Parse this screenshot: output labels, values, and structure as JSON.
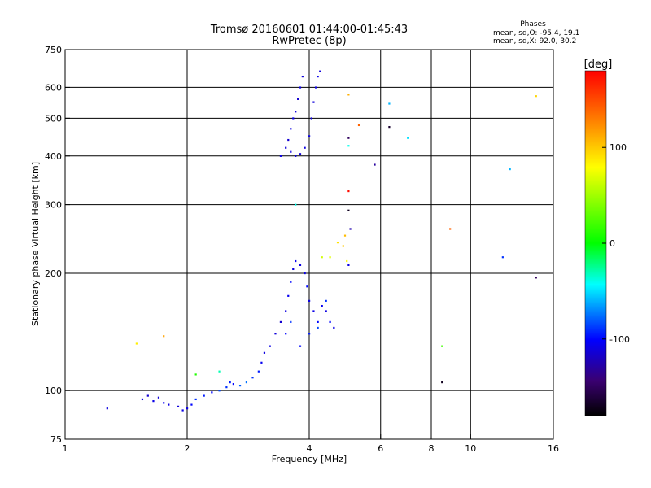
{
  "chart_data": {
    "type": "scatter",
    "title": "Tromsø 20160601 01:44:00-01:45:43",
    "subtitle": "RwPretec (8p)",
    "xlabel": "Frequency [MHz]",
    "ylabel": "Stationary phase Virtual Height [km]",
    "x_scale": "log2",
    "y_scale": "log",
    "xlim": [
      1,
      16
    ],
    "ylim": [
      75,
      750
    ],
    "x_ticks": [
      1,
      2,
      4,
      6,
      8,
      10,
      16
    ],
    "x_tick_labels": [
      "1",
      "2",
      "4",
      "6",
      "8",
      "10",
      "16"
    ],
    "x_grid": [
      2,
      4,
      6,
      8,
      10
    ],
    "y_ticks": [
      75,
      100,
      200,
      300,
      400,
      500,
      600,
      750
    ],
    "y_tick_labels": [
      "75",
      "100",
      "200",
      "300",
      "400",
      "500",
      "600",
      "750"
    ],
    "y_grid": [
      100,
      200,
      300,
      400,
      500,
      600
    ],
    "grid": true,
    "stats": {
      "header": "Phases",
      "line_o": "mean, sd,O: -95.4, 19.1",
      "line_x": "mean, sd,X:  92.0, 30.2"
    },
    "colorbar": {
      "label": "[deg]",
      "range": [
        -180,
        180
      ],
      "ticks": [
        100,
        0,
        -100
      ],
      "tick_labels": [
        "100",
        "0",
        "-100"
      ],
      "colormap": "rainbow (black-purple-blue-cyan-green-yellow-orange-red)"
    },
    "points": [
      [
        1.27,
        90,
        -110
      ],
      [
        1.55,
        95,
        -110
      ],
      [
        1.6,
        97,
        -115
      ],
      [
        1.65,
        94,
        -108
      ],
      [
        1.7,
        96,
        -112
      ],
      [
        1.75,
        93,
        -105
      ],
      [
        1.8,
        92,
        -110
      ],
      [
        1.9,
        91,
        -112
      ],
      [
        1.95,
        89,
        -108
      ],
      [
        2.0,
        90,
        -110
      ],
      [
        2.05,
        92,
        -100
      ],
      [
        2.1,
        95,
        -90
      ],
      [
        2.2,
        97,
        -95
      ],
      [
        2.3,
        99,
        -100
      ],
      [
        2.4,
        100,
        -85
      ],
      [
        2.5,
        102,
        -90
      ],
      [
        2.55,
        105,
        -95
      ],
      [
        2.6,
        104,
        -100
      ],
      [
        2.7,
        103,
        -80
      ],
      [
        2.8,
        105,
        -75
      ],
      [
        2.9,
        108,
        -90
      ],
      [
        3.0,
        112,
        -95
      ],
      [
        3.05,
        118,
        -105
      ],
      [
        3.1,
        125,
        -110
      ],
      [
        3.2,
        130,
        -108
      ],
      [
        3.3,
        140,
        -112
      ],
      [
        3.4,
        150,
        -115
      ],
      [
        3.5,
        160,
        -110
      ],
      [
        3.55,
        175,
        -105
      ],
      [
        3.6,
        190,
        -100
      ],
      [
        3.65,
        205,
        -110
      ],
      [
        3.7,
        215,
        -105
      ],
      [
        3.8,
        210,
        -110
      ],
      [
        3.9,
        200,
        -108
      ],
      [
        3.95,
        185,
        -100
      ],
      [
        4.0,
        170,
        -110
      ],
      [
        4.1,
        160,
        -108
      ],
      [
        4.2,
        150,
        -100
      ],
      [
        4.3,
        165,
        -105
      ],
      [
        4.4,
        160,
        -110
      ],
      [
        4.5,
        150,
        -100
      ],
      [
        4.6,
        145,
        -108
      ],
      [
        3.5,
        140,
        -100
      ],
      [
        3.6,
        150,
        -90
      ],
      [
        3.8,
        130,
        -100
      ],
      [
        4.0,
        140,
        -95
      ],
      [
        4.2,
        145,
        -85
      ],
      [
        4.4,
        170,
        -90
      ],
      [
        3.4,
        400,
        -110
      ],
      [
        3.5,
        420,
        -112
      ],
      [
        3.55,
        440,
        -115
      ],
      [
        3.6,
        470,
        -110
      ],
      [
        3.65,
        500,
        -108
      ],
      [
        3.7,
        520,
        -112
      ],
      [
        3.75,
        560,
        -115
      ],
      [
        3.8,
        600,
        -110
      ],
      [
        3.85,
        640,
        -112
      ],
      [
        3.6,
        410,
        -108
      ],
      [
        3.7,
        400,
        -110
      ],
      [
        3.8,
        405,
        -112
      ],
      [
        3.9,
        420,
        -110
      ],
      [
        4.0,
        450,
        -108
      ],
      [
        4.05,
        500,
        -110
      ],
      [
        4.1,
        550,
        -112
      ],
      [
        4.15,
        600,
        -110
      ],
      [
        4.2,
        640,
        -108
      ],
      [
        4.25,
        660,
        -112
      ],
      [
        4.3,
        220,
        65
      ],
      [
        4.5,
        220,
        70
      ],
      [
        4.7,
        240,
        90
      ],
      [
        4.85,
        235,
        100
      ],
      [
        4.9,
        250,
        105
      ],
      [
        4.95,
        215,
        80
      ],
      [
        5.0,
        210,
        -110
      ],
      [
        5.05,
        260,
        -125
      ],
      [
        1.5,
        132,
        85
      ],
      [
        1.75,
        138,
        115
      ],
      [
        2.1,
        110,
        10
      ],
      [
        2.4,
        112,
        -30
      ],
      [
        5.0,
        575,
        110
      ],
      [
        5.3,
        480,
        140
      ],
      [
        5.0,
        445,
        -150
      ],
      [
        5.0,
        425,
        -40
      ],
      [
        5.0,
        325,
        175
      ],
      [
        5.0,
        290,
        -170
      ],
      [
        5.8,
        380,
        -130
      ],
      [
        6.3,
        545,
        -60
      ],
      [
        6.3,
        475,
        -165
      ],
      [
        7.0,
        445,
        -50
      ],
      [
        8.5,
        105,
        -170
      ],
      [
        8.5,
        130,
        20
      ],
      [
        8.9,
        260,
        140
      ],
      [
        12,
        220,
        -90
      ],
      [
        12.5,
        370,
        -60
      ],
      [
        14.5,
        570,
        95
      ],
      [
        14.5,
        195,
        -150
      ],
      [
        3.7,
        300,
        -40
      ]
    ]
  }
}
